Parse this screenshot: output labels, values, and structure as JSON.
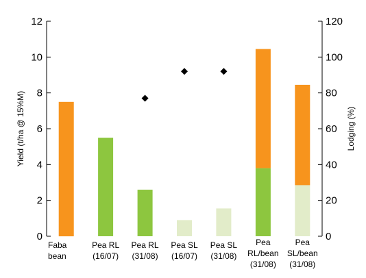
{
  "chart_data": {
    "type": "bar",
    "stacked": true,
    "categories": [
      [
        "Faba",
        "bean"
      ],
      [
        "Pea RL",
        "(16/07)"
      ],
      [
        "Pea RL",
        "(31/08)"
      ],
      [
        "Pea SL",
        "(16/07)"
      ],
      [
        "Pea SL",
        "(31/08)"
      ],
      [
        "Pea",
        "RL/bean",
        "(31/08)"
      ],
      [
        "Pea",
        "SL/bean",
        "(31/08)"
      ]
    ],
    "series": [
      {
        "color": "#8dc63f",
        "values": [
          0,
          5.5,
          2.6,
          0,
          0,
          3.8,
          0
        ]
      },
      {
        "color": "#e2ecc9",
        "values": [
          0,
          0,
          0,
          0.9,
          1.55,
          0,
          2.85
        ]
      },
      {
        "color": "#f7941d",
        "values": [
          7.5,
          0,
          0,
          0,
          0,
          6.65,
          5.6
        ]
      }
    ],
    "lodging": {
      "axis": "right",
      "marker": "diamond",
      "color": "#000000",
      "values": [
        null,
        null,
        77,
        92,
        92,
        null,
        null
      ]
    },
    "ylabel": "Yield (t/ha @ 15%M)",
    "ylabel_right": "Lodging (%)",
    "ylim": [
      0,
      12
    ],
    "yticks": [
      0,
      2,
      4,
      6,
      8,
      10,
      12
    ],
    "ylim_right": [
      0,
      120
    ],
    "yticks_right": [
      0,
      20,
      40,
      60,
      80,
      100,
      120
    ],
    "grid": false,
    "legend": "none"
  }
}
